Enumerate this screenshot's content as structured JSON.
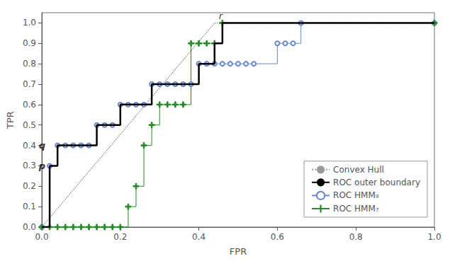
{
  "chart_data": {
    "type": "line",
    "xlabel": "FPR",
    "ylabel": "TPR",
    "xlim": [
      0,
      1
    ],
    "ylim": [
      0,
      1.05
    ],
    "xticks": [
      {
        "value": 0,
        "label": "0.0"
      },
      0.2,
      0.4,
      0.6,
      0.8,
      {
        "value": 1,
        "label": "1.0"
      }
    ],
    "yticks": [
      {
        "value": 0,
        "label": "0.0"
      },
      0.1,
      0.2,
      0.3,
      0.4,
      0.5,
      0.6,
      0.7,
      0.8,
      0.9,
      {
        "value": 1,
        "label": "1.0"
      }
    ],
    "grid": false,
    "legend": "lower right",
    "series": [
      {
        "name": "Convex Hull",
        "color": "#999999",
        "line_style": "dotted",
        "x": [
          0,
          0.44,
          1.0
        ],
        "values": [
          0,
          1.0,
          1.0
        ]
      },
      {
        "name": "ROC outer boundary",
        "color": "#000000",
        "line_style": "step",
        "x": [
          0,
          0.02,
          0.04,
          0.06,
          0.08,
          0.1,
          0.12,
          0.14,
          0.16,
          0.18,
          0.2,
          0.22,
          0.24,
          0.26,
          0.28,
          0.3,
          0.32,
          0.34,
          0.36,
          0.38,
          0.4,
          0.42,
          0.44,
          0.46,
          1.0
        ],
        "values": [
          0,
          0.3,
          0.4,
          0.4,
          0.4,
          0.4,
          0.4,
          0.5,
          0.5,
          0.5,
          0.6,
          0.6,
          0.6,
          0.6,
          0.7,
          0.7,
          0.7,
          0.7,
          0.7,
          0.7,
          0.8,
          0.8,
          0.9,
          1.0,
          1.0
        ]
      },
      {
        "name": "ROC HMM₉",
        "color": "#6688CC",
        "line_style": "step",
        "marker": "circle",
        "x": [
          0,
          0.02,
          0.04,
          0.06,
          0.08,
          0.1,
          0.12,
          0.14,
          0.16,
          0.18,
          0.2,
          0.22,
          0.24,
          0.26,
          0.28,
          0.3,
          0.32,
          0.34,
          0.36,
          0.38,
          0.4,
          0.42,
          0.44,
          0.46,
          0.48,
          0.5,
          0.52,
          0.54,
          0.6,
          0.62,
          0.64,
          0.66,
          1.0
        ],
        "values": [
          0,
          0.3,
          0.4,
          0.4,
          0.4,
          0.4,
          0.4,
          0.5,
          0.5,
          0.5,
          0.6,
          0.6,
          0.6,
          0.6,
          0.7,
          0.7,
          0.7,
          0.7,
          0.7,
          0.7,
          0.8,
          0.8,
          0.8,
          0.8,
          0.8,
          0.8,
          0.8,
          0.8,
          0.9,
          0.9,
          0.9,
          1.0,
          1.0
        ]
      },
      {
        "name": "ROC HMM₇",
        "color": "#228B22",
        "line_style": "step",
        "marker": "plus",
        "x": [
          0,
          0.02,
          0.04,
          0.06,
          0.08,
          0.1,
          0.12,
          0.14,
          0.16,
          0.18,
          0.2,
          0.22,
          0.24,
          0.26,
          0.28,
          0.3,
          0.32,
          0.34,
          0.36,
          0.38,
          0.4,
          0.42,
          0.44,
          0.46,
          1.0
        ],
        "values": [
          0,
          0.0,
          0.0,
          0.0,
          0.0,
          0.0,
          0.0,
          0.0,
          0.0,
          0.0,
          0.0,
          0.1,
          0.2,
          0.4,
          0.5,
          0.6,
          0.6,
          0.6,
          0.6,
          0.9,
          0.9,
          0.9,
          0.9,
          1.0,
          1.0
        ]
      }
    ],
    "annotations": [
      {
        "text": "p",
        "x": 0.02,
        "y": 0.3
      },
      {
        "text": "q",
        "x": 0.02,
        "y": 0.4
      },
      {
        "text": "r",
        "x": 0.44,
        "y": 1.0
      }
    ]
  }
}
